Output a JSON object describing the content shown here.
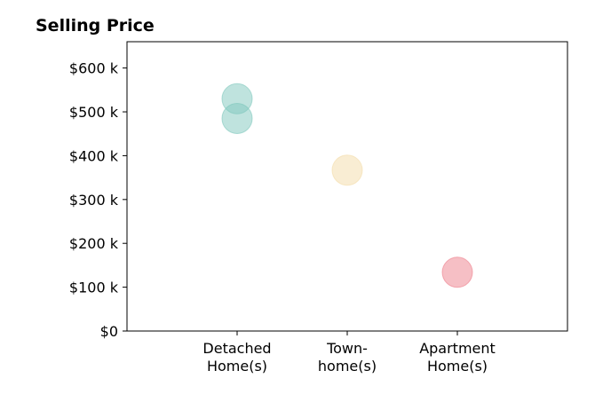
{
  "chart_data": {
    "type": "scatter",
    "title": "Selling Price",
    "xlabel": "",
    "ylabel": "",
    "categories": [
      [
        "Detached",
        "Home(s)"
      ],
      [
        "Town-",
        "home(s)"
      ],
      [
        "Apartment",
        "Home(s)"
      ]
    ],
    "y_ticks": [
      {
        "value": 0,
        "label": "$0"
      },
      {
        "value": 100000,
        "label": "$100 k"
      },
      {
        "value": 200000,
        "label": "$200 k"
      },
      {
        "value": 300000,
        "label": "$300 k"
      },
      {
        "value": 400000,
        "label": "$400 k"
      },
      {
        "value": 500000,
        "label": "$500 k"
      },
      {
        "value": 600000,
        "label": "$600 k"
      }
    ],
    "ylim": [
      0,
      660000
    ],
    "xlim": [
      -1,
      3
    ],
    "grid": false,
    "points": [
      {
        "category": "Detached Home(s)",
        "x": 0,
        "y": 530000,
        "color": "#7fc8bd"
      },
      {
        "category": "Detached Home(s)",
        "x": 0,
        "y": 485000,
        "color": "#7fc8bd"
      },
      {
        "category": "Town-home(s)",
        "x": 1,
        "y": 367000,
        "color": "#f3dca8"
      },
      {
        "category": "Apartment Home(s)",
        "x": 2,
        "y": 134000,
        "color": "#ee7f8c"
      }
    ]
  }
}
